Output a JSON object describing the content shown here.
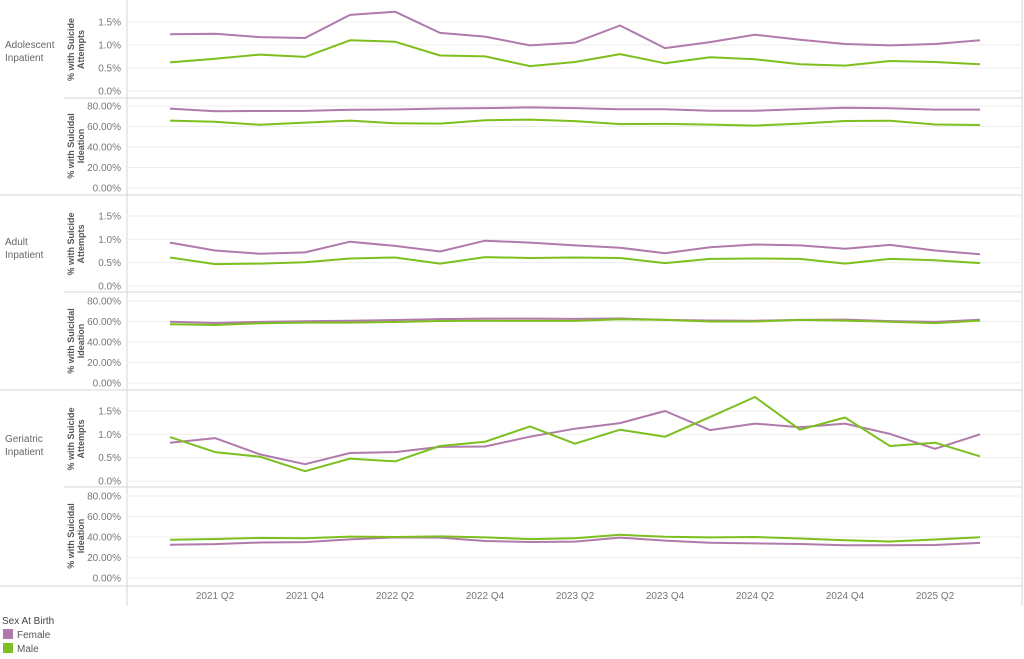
{
  "colors": {
    "female": "#b07aaa",
    "male": "#7dbf1e",
    "grid": "#eeeeee",
    "divider": "#d6d6d6",
    "axis_line": "#cccccc"
  },
  "legend": {
    "title": "Sex At Birth",
    "items": [
      {
        "label": "Female",
        "color": "#b07aaa"
      },
      {
        "label": "Male",
        "color": "#7dbf1e"
      }
    ]
  },
  "x_tick_labels": [
    "2021 Q2",
    "2021 Q4",
    "2022 Q2",
    "2022 Q4",
    "2023 Q2",
    "2023 Q4",
    "2024 Q2",
    "2024 Q4",
    "2025 Q2"
  ],
  "row_labels": [
    [
      "Adolescent",
      "Inpatient"
    ],
    [
      "Adult",
      "Inpatient"
    ],
    [
      "Geriatric",
      "Inpatient"
    ]
  ],
  "axis_titles": {
    "attempts": [
      "% with Suicide",
      "Attempts"
    ],
    "ideation": [
      "% with Suicidal",
      "Ideation"
    ]
  },
  "attempt_ticks": [
    "0.0%",
    "0.5%",
    "1.0%",
    "1.5%"
  ],
  "ideation_ticks": [
    "0.00%",
    "20.00%",
    "40.00%",
    "60.00%",
    "80.00%"
  ],
  "chart_data": {
    "type": "line",
    "x": [
      "2021 Q1",
      "2021 Q2",
      "2021 Q3",
      "2021 Q4",
      "2022 Q1",
      "2022 Q2",
      "2022 Q3",
      "2022 Q4",
      "2023 Q1",
      "2023 Q2",
      "2023 Q3",
      "2023 Q4",
      "2024 Q1",
      "2024 Q2",
      "2024 Q3",
      "2024 Q4",
      "2025 Q1",
      "2025 Q2",
      "2025 Q3"
    ],
    "panels": [
      {
        "group": "Adolescent Inpatient",
        "measure": "% with Suicide Attempts",
        "ylim": [
          0,
          1.8
        ],
        "series": [
          {
            "name": "Female",
            "values": [
              1.23,
              1.24,
              1.17,
              1.15,
              1.65,
              1.72,
              1.26,
              1.18,
              0.99,
              1.05,
              1.42,
              0.93,
              1.06,
              1.22,
              1.11,
              1.02,
              0.99,
              1.02,
              1.1
            ]
          },
          {
            "name": "Male",
            "values": [
              0.62,
              0.7,
              0.79,
              0.74,
              1.1,
              1.07,
              0.77,
              0.75,
              0.54,
              0.63,
              0.8,
              0.6,
              0.73,
              0.69,
              0.58,
              0.55,
              0.65,
              0.63,
              0.58
            ]
          }
        ]
      },
      {
        "group": "Adolescent Inpatient",
        "measure": "% with Suicidal Ideation",
        "ylim": [
          0,
          82
        ],
        "series": [
          {
            "name": "Female",
            "values": [
              77.5,
              75.0,
              75.2,
              75.3,
              76.3,
              76.6,
              77.6,
              78.0,
              78.7,
              78.0,
              76.8,
              76.8,
              75.4,
              75.4,
              77.0,
              78.3,
              77.9,
              76.5,
              76.5
            ]
          },
          {
            "name": "Male",
            "values": [
              65.8,
              64.6,
              61.7,
              63.8,
              65.8,
              63.2,
              62.9,
              66.2,
              66.8,
              65.3,
              62.4,
              62.6,
              61.9,
              60.9,
              62.9,
              65.4,
              65.7,
              62.0,
              61.5
            ]
          }
        ]
      },
      {
        "group": "Adult Inpatient",
        "measure": "% with Suicide Attempts",
        "ylim": [
          0,
          1.8
        ],
        "series": [
          {
            "name": "Female",
            "values": [
              0.93,
              0.76,
              0.69,
              0.72,
              0.95,
              0.86,
              0.74,
              0.97,
              0.93,
              0.87,
              0.82,
              0.7,
              0.83,
              0.89,
              0.87,
              0.8,
              0.88,
              0.76,
              0.68
            ]
          },
          {
            "name": "Male",
            "values": [
              0.61,
              0.47,
              0.48,
              0.51,
              0.59,
              0.61,
              0.48,
              0.62,
              0.6,
              0.61,
              0.6,
              0.49,
              0.58,
              0.59,
              0.58,
              0.48,
              0.58,
              0.55,
              0.49
            ]
          }
        ]
      },
      {
        "group": "Adult Inpatient",
        "measure": "% with Suicidal Ideation",
        "ylim": [
          0,
          82
        ],
        "series": [
          {
            "name": "Female",
            "values": [
              59.8,
              58.6,
              59.6,
              60.3,
              60.8,
              61.5,
              62.4,
              62.9,
              62.9,
              62.6,
              63.0,
              61.6,
              61.0,
              60.8,
              61.6,
              61.9,
              60.4,
              59.6,
              61.7
            ]
          },
          {
            "name": "Male",
            "values": [
              57.3,
              56.6,
              58.4,
              59.0,
              59.0,
              59.5,
              60.5,
              60.7,
              60.6,
              60.6,
              62.2,
              61.6,
              60.0,
              60.0,
              61.6,
              60.9,
              59.7,
              58.5,
              60.9
            ]
          }
        ]
      },
      {
        "group": "Geriatric Inpatient",
        "measure": "% with Suicide Attempts",
        "ylim": [
          0,
          1.8
        ],
        "series": [
          {
            "name": "Female",
            "values": [
              0.82,
              0.92,
              0.57,
              0.36,
              0.6,
              0.62,
              0.73,
              0.74,
              0.95,
              1.12,
              1.24,
              1.5,
              1.09,
              1.23,
              1.15,
              1.23,
              1.01,
              0.69,
              1.0
            ]
          },
          {
            "name": "Male",
            "values": [
              0.94,
              0.62,
              0.52,
              0.21,
              0.48,
              0.42,
              0.75,
              0.84,
              1.17,
              0.8,
              1.1,
              0.95,
              1.37,
              1.8,
              1.1,
              1.36,
              0.75,
              0.82,
              0.53
            ]
          }
        ]
      },
      {
        "group": "Geriatric Inpatient",
        "measure": "% with Suicidal Ideation",
        "ylim": [
          0,
          82
        ],
        "series": [
          {
            "name": "Female",
            "values": [
              32.5,
              33.1,
              34.7,
              35.0,
              37.7,
              39.6,
              39.4,
              36.1,
              35.1,
              35.5,
              39.4,
              36.5,
              34.5,
              33.8,
              33.2,
              32.0,
              32.0,
              32.2,
              34.3
            ]
          },
          {
            "name": "Male",
            "values": [
              37.4,
              38.1,
              39.1,
              38.8,
              40.4,
              40.0,
              40.6,
              39.6,
              38.0,
              38.9,
              42.2,
              40.2,
              39.6,
              40.0,
              38.6,
              36.9,
              35.6,
              37.6,
              39.8
            ]
          }
        ]
      }
    ]
  }
}
